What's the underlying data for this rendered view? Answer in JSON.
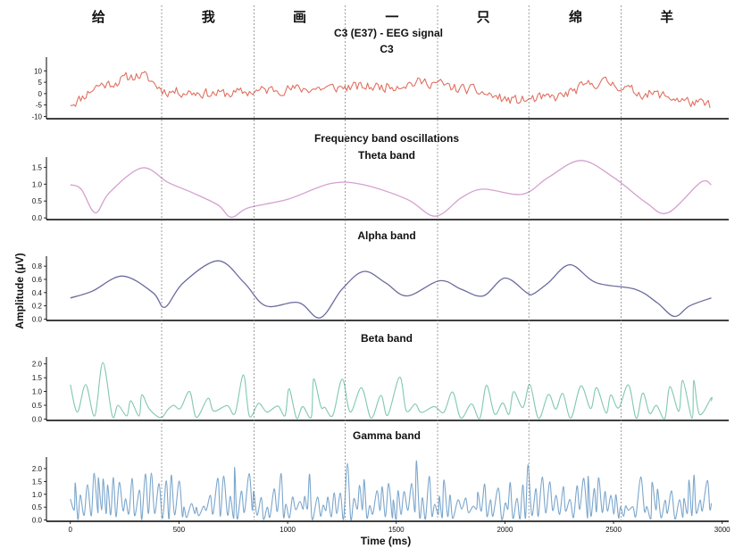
{
  "figure": {
    "main_title": "C3 (E37) - EEG signal",
    "band_heading": "Frequency band oscillations",
    "xlabel": "Time (ms)",
    "ylabel": "Amplitude (μV)",
    "words": [
      "给",
      "我",
      "画",
      "一",
      "只",
      "绵",
      "羊"
    ]
  },
  "chart_data": {
    "type": "line",
    "xlim": [
      -110,
      3030
    ],
    "x_ticks": [
      0,
      500,
      1000,
      1500,
      2000,
      2500,
      3000
    ],
    "word_boundaries_ms": [
      420,
      845,
      1265,
      1690,
      2110,
      2535
    ],
    "word_centers_ms": [
      130,
      635,
      1055,
      1480,
      1900,
      2325,
      2745
    ],
    "panels": [
      {
        "id": "c3",
        "title": "C3",
        "color": "#e07060",
        "ylim": [
          -11,
          16
        ],
        "y_ticks": [
          -10,
          -5,
          0,
          5,
          10
        ],
        "kind": "eeg",
        "envelope": [
          [
            0,
            -4
          ],
          [
            150,
            4
          ],
          [
            320,
            8
          ],
          [
            450,
            1
          ],
          [
            700,
            0
          ],
          [
            1000,
            2
          ],
          [
            1400,
            3
          ],
          [
            1650,
            5
          ],
          [
            1800,
            2
          ],
          [
            2050,
            -3
          ],
          [
            2200,
            -2
          ],
          [
            2450,
            5
          ],
          [
            2650,
            0
          ],
          [
            2950,
            -5
          ]
        ],
        "noise": 3.2,
        "seed": 11
      },
      {
        "id": "theta",
        "title": "Theta band",
        "color": "#d4a0cf",
        "ylim": [
          -0.05,
          1.8
        ],
        "y_ticks": [
          0.0,
          0.5,
          1.0,
          1.5
        ],
        "kind": "smooth",
        "points": [
          [
            0,
            0.98
          ],
          [
            50,
            0.85
          ],
          [
            115,
            0.15
          ],
          [
            180,
            0.75
          ],
          [
            330,
            1.48
          ],
          [
            450,
            1.05
          ],
          [
            560,
            0.75
          ],
          [
            680,
            0.38
          ],
          [
            740,
            0.02
          ],
          [
            820,
            0.3
          ],
          [
            1000,
            0.55
          ],
          [
            1200,
            1.02
          ],
          [
            1350,
            0.98
          ],
          [
            1550,
            0.55
          ],
          [
            1680,
            0.05
          ],
          [
            1800,
            0.6
          ],
          [
            1900,
            0.85
          ],
          [
            2080,
            0.7
          ],
          [
            2200,
            1.2
          ],
          [
            2350,
            1.7
          ],
          [
            2500,
            1.2
          ],
          [
            2650,
            0.45
          ],
          [
            2750,
            0.15
          ],
          [
            2900,
            1.05
          ],
          [
            2950,
            0.98
          ]
        ]
      },
      {
        "id": "alpha",
        "title": "Alpha band",
        "color": "#6b6b9e",
        "ylim": [
          -0.02,
          0.95
        ],
        "y_ticks": [
          0.0,
          0.2,
          0.4,
          0.6,
          0.8
        ],
        "kind": "smooth",
        "points": [
          [
            0,
            0.32
          ],
          [
            100,
            0.42
          ],
          [
            240,
            0.65
          ],
          [
            380,
            0.4
          ],
          [
            435,
            0.18
          ],
          [
            520,
            0.55
          ],
          [
            680,
            0.88
          ],
          [
            800,
            0.55
          ],
          [
            900,
            0.2
          ],
          [
            1050,
            0.25
          ],
          [
            1150,
            0.02
          ],
          [
            1250,
            0.45
          ],
          [
            1350,
            0.72
          ],
          [
            1450,
            0.55
          ],
          [
            1550,
            0.35
          ],
          [
            1700,
            0.58
          ],
          [
            1800,
            0.45
          ],
          [
            1900,
            0.35
          ],
          [
            2000,
            0.62
          ],
          [
            2100,
            0.4
          ],
          [
            2130,
            0.38
          ],
          [
            2200,
            0.55
          ],
          [
            2300,
            0.82
          ],
          [
            2420,
            0.55
          ],
          [
            2600,
            0.45
          ],
          [
            2700,
            0.25
          ],
          [
            2780,
            0.04
          ],
          [
            2850,
            0.2
          ],
          [
            2950,
            0.32
          ]
        ]
      },
      {
        "id": "beta",
        "title": "Beta band",
        "color": "#80c8b0",
        "ylim": [
          -0.05,
          2.25
        ],
        "y_ticks": [
          0.0,
          0.5,
          1.0,
          1.5,
          2.0
        ],
        "kind": "osc",
        "period": 70,
        "base": 0.8,
        "amp": 0.7,
        "bumps": [
          [
            110,
            2.05
          ],
          [
            40,
            1.25
          ],
          [
            430,
            0.05
          ],
          [
            820,
            1.6
          ],
          [
            1240,
            1.45
          ],
          [
            2100,
            1.25
          ],
          [
            2350,
            1.2
          ],
          [
            2850,
            1.4
          ]
        ],
        "seed": 23
      },
      {
        "id": "gamma",
        "title": "Gamma band",
        "color": "#7ba6cc",
        "ylim": [
          -0.05,
          2.45
        ],
        "y_ticks": [
          0.0,
          0.5,
          1.0,
          1.5,
          2.0
        ],
        "kind": "osc",
        "period": 28,
        "base": 0.95,
        "amp": 0.85,
        "bumps": [
          [
            1600,
            2.3
          ],
          [
            1260,
            2.2
          ],
          [
            2110,
            2.15
          ],
          [
            760,
            2.05
          ]
        ],
        "seed": 41
      }
    ]
  }
}
